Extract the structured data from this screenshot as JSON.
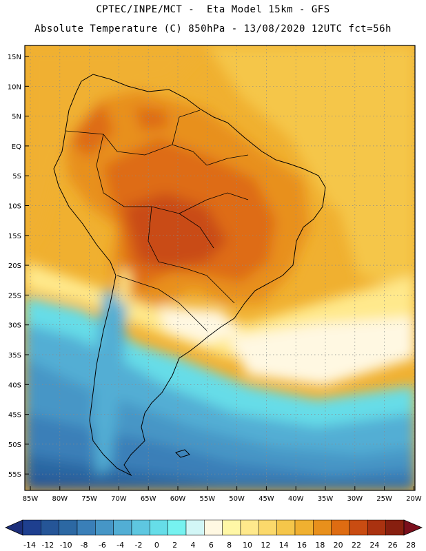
{
  "header": {
    "line1": "CPTEC/INPE/MCT -  Eta Model 15km - GFS",
    "line2": "Absolute Temperature (C) 850hPa - 13/08/2020 12UTC fct=56h"
  },
  "map": {
    "lat_labels": [
      "15N",
      "10N",
      "5N",
      "EQ",
      "5S",
      "10S",
      "15S",
      "20S",
      "25S",
      "30S",
      "35S",
      "40S",
      "45S",
      "50S",
      "55S"
    ],
    "lon_labels": [
      "85W",
      "80W",
      "75W",
      "70W",
      "65W",
      "60W",
      "55W",
      "50W",
      "45W",
      "40W",
      "35W",
      "30W",
      "25W",
      "20W"
    ],
    "grid_lines": "dotted"
  },
  "colorbar": {
    "ticks": [
      "-14",
      "-12",
      "-10",
      "-8",
      "-6",
      "-4",
      "-2",
      "0",
      "2",
      "4",
      "6",
      "8",
      "10",
      "12",
      "14",
      "16",
      "18",
      "20",
      "22",
      "24",
      "26",
      "28"
    ],
    "colors": [
      "#1e3f8f",
      "#255597",
      "#2c68a3",
      "#3a7fb8",
      "#4696c6",
      "#52aed4",
      "#5ec7e0",
      "#66dde8",
      "#76f2f0",
      "#d2f6f6",
      "#fff8e2",
      "#fff7a6",
      "#ffe98c",
      "#fbd96b",
      "#f5c64a",
      "#f0b030",
      "#e8901c",
      "#de6c12",
      "#c94c12",
      "#aa3210",
      "#871f0f"
    ],
    "under_color": "#1c2e7a",
    "over_color": "#7a0f1c"
  }
}
